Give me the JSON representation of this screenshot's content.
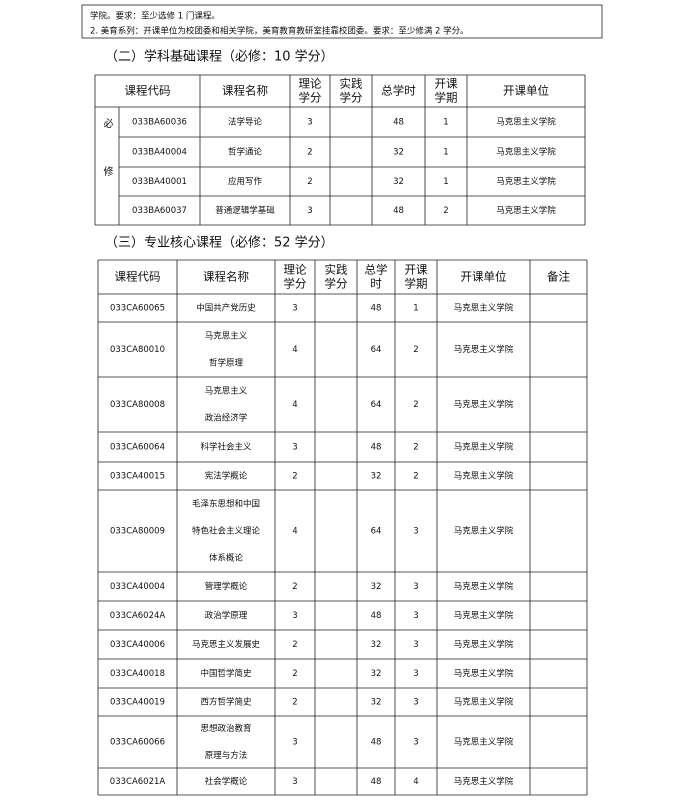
{
  "intro": {
    "lines": [
      "学院。要求：至少选修 1 门课程。",
      "2. 美育系列：开课单位为校团委和相关学院，美育教育教研室挂靠校团委。要求：至少修满 2 学分。"
    ]
  },
  "sections": [
    {
      "heading": "（二）学科基础课程（必修：10 学分）",
      "table": {
        "header": [
          [
            "课程代码"
          ],
          [
            "课程名称"
          ],
          [
            "理论",
            "学分"
          ],
          [
            "实践",
            "学分"
          ],
          [
            "总学时"
          ],
          [
            "开课",
            "学期"
          ],
          [
            "开课单位"
          ]
        ],
        "side_label": "必修",
        "rows": [
          {
            "code": "033BA60036",
            "name": [
              "法学导论"
            ],
            "theory": "3",
            "hours": "48",
            "term": "1",
            "unit": "马克思主义学院"
          },
          {
            "code": "033BA40004",
            "name": [
              "哲学通论"
            ],
            "theory": "2",
            "hours": "32",
            "term": "1",
            "unit": "马克思主义学院"
          },
          {
            "code": "033BA40001",
            "name": [
              "应用写作"
            ],
            "theory": "2",
            "hours": "32",
            "term": "1",
            "unit": "马克思主义学院"
          },
          {
            "code": "033BA60037",
            "name": [
              "普通逻辑学基础"
            ],
            "theory": "3",
            "hours": "48",
            "term": "2",
            "unit": "马克思主义学院"
          }
        ]
      }
    },
    {
      "heading": "（三）专业核心课程（必修：52 学分）",
      "table": {
        "header": [
          [
            "课程代码"
          ],
          [
            "课程名称"
          ],
          [
            "理论",
            "学分"
          ],
          [
            "实践",
            "学分"
          ],
          [
            "总学",
            "时"
          ],
          [
            "开课",
            "学期"
          ],
          [
            "开课单位"
          ],
          [
            "备注"
          ]
        ],
        "rows": [
          {
            "code": "033CA60065",
            "name": [
              "中国共产党历史"
            ],
            "theory": "3",
            "hours": "48",
            "term": "1",
            "unit": "马克思主义学院"
          },
          {
            "code": "033CA80010",
            "name": [
              "马克思主义",
              "哲学原理"
            ],
            "theory": "4",
            "hours": "64",
            "term": "2",
            "unit": "马克思主义学院"
          },
          {
            "code": "033CA80008",
            "name": [
              "马克思主义",
              "政治经济学"
            ],
            "theory": "4",
            "hours": "64",
            "term": "2",
            "unit": "马克思主义学院"
          },
          {
            "code": "033CA60064",
            "name": [
              "科学社会主义"
            ],
            "theory": "3",
            "hours": "48",
            "term": "2",
            "unit": "马克思主义学院"
          },
          {
            "code": "033CA40015",
            "name": [
              "宪法学概论"
            ],
            "theory": "2",
            "hours": "32",
            "term": "2",
            "unit": "马克思主义学院"
          },
          {
            "code": "033CA80009",
            "name": [
              "毛泽东思想和中国",
              "特色社会主义理论",
              "体系概论"
            ],
            "theory": "4",
            "hours": "64",
            "term": "3",
            "unit": "马克思主义学院"
          },
          {
            "code": "033CA40004",
            "name": [
              "管理学概论"
            ],
            "theory": "2",
            "hours": "32",
            "term": "3",
            "unit": "马克思主义学院"
          },
          {
            "code": "033CA6024A",
            "name": [
              "政治学原理"
            ],
            "theory": "3",
            "hours": "48",
            "term": "3",
            "unit": "马克思主义学院"
          },
          {
            "code": "033CA40006",
            "name": [
              "马克思主义发展史"
            ],
            "theory": "2",
            "hours": "32",
            "term": "3",
            "unit": "马克思主义学院"
          },
          {
            "code": "033CA40018",
            "name": [
              "中国哲学简史"
            ],
            "theory": "2",
            "hours": "32",
            "term": "3",
            "unit": "马克思主义学院"
          },
          {
            "code": "033CA40019",
            "name": [
              "西方哲学简史"
            ],
            "theory": "2",
            "hours": "32",
            "term": "3",
            "unit": "马克思主义学院"
          },
          {
            "code": "033CA60066",
            "name": [
              "思想政治教育",
              "原理与方法"
            ],
            "theory": "3",
            "hours": "48",
            "term": "3",
            "unit": "马克思主义学院"
          },
          {
            "code": "033CA6021A",
            "name": [
              "社会学概论"
            ],
            "theory": "3",
            "hours": "48",
            "term": "4",
            "unit": "马克思主义学院"
          }
        ]
      }
    }
  ]
}
